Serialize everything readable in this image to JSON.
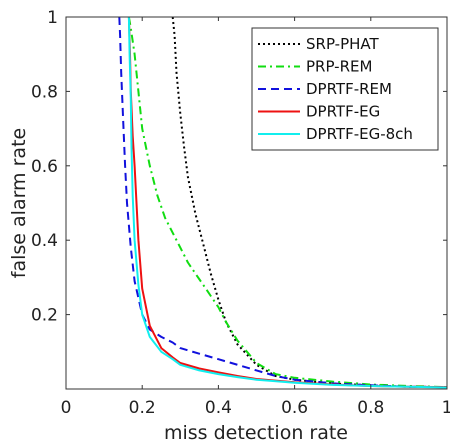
{
  "chart_data": {
    "type": "line",
    "title": "",
    "xlabel": "miss detection rate",
    "ylabel": "false alarm rate",
    "xlim": [
      0,
      1
    ],
    "ylim": [
      0,
      1
    ],
    "xticks": [
      0,
      0.2,
      0.4,
      0.6,
      0.8,
      1
    ],
    "xtick_labels": [
      "0",
      "0.2",
      "0.4",
      "0.6",
      "0.8",
      "1"
    ],
    "yticks": [
      0.2,
      0.4,
      0.6,
      0.8,
      1
    ],
    "ytick_labels": [
      "0.2",
      "0.4",
      "0.6",
      "0.8",
      "1"
    ],
    "grid": false,
    "legend_position": "top-right",
    "series": [
      {
        "name": "SRP-PHAT",
        "color": "#000000",
        "line_style": "dotted",
        "x": [
          0.28,
          0.285,
          0.29,
          0.3,
          0.31,
          0.32,
          0.34,
          0.36,
          0.38,
          0.4,
          0.42,
          0.45,
          0.5,
          0.55,
          0.6,
          0.7,
          0.8,
          0.9,
          1.0
        ],
        "y": [
          1.0,
          0.95,
          0.85,
          0.74,
          0.65,
          0.57,
          0.47,
          0.39,
          0.31,
          0.24,
          0.18,
          0.12,
          0.065,
          0.035,
          0.025,
          0.015,
          0.01,
          0.006,
          0.005
        ]
      },
      {
        "name": "PRP-REM",
        "color": "#11dd11",
        "line_style": "dashdot",
        "x": [
          0.165,
          0.17,
          0.18,
          0.19,
          0.2,
          0.22,
          0.24,
          0.26,
          0.28,
          0.3,
          0.32,
          0.34,
          0.36,
          0.38,
          0.4,
          0.42,
          0.45,
          0.5,
          0.55,
          0.6,
          0.7,
          0.8,
          0.9,
          1.0
        ],
        "y": [
          1.0,
          0.97,
          0.9,
          0.8,
          0.7,
          0.6,
          0.52,
          0.46,
          0.42,
          0.38,
          0.34,
          0.31,
          0.28,
          0.25,
          0.22,
          0.18,
          0.13,
          0.07,
          0.04,
          0.03,
          0.02,
          0.012,
          0.008,
          0.005
        ]
      },
      {
        "name": "DPRTF-REM",
        "color": "#1111dd",
        "line_style": "dashed",
        "x": [
          0.14,
          0.142,
          0.145,
          0.15,
          0.155,
          0.16,
          0.17,
          0.18,
          0.2,
          0.22,
          0.25,
          0.28,
          0.3,
          0.35,
          0.4,
          0.45,
          0.5,
          0.55,
          0.6,
          0.7,
          0.8,
          0.9,
          1.0
        ],
        "y": [
          1.0,
          0.95,
          0.85,
          0.72,
          0.6,
          0.5,
          0.38,
          0.29,
          0.2,
          0.16,
          0.14,
          0.125,
          0.11,
          0.095,
          0.08,
          0.065,
          0.05,
          0.035,
          0.025,
          0.015,
          0.01,
          0.006,
          0.005
        ]
      },
      {
        "name": "DPRTF-EG",
        "color": "#ee1111",
        "line_style": "solid",
        "x": [
          0.165,
          0.168,
          0.17,
          0.175,
          0.18,
          0.185,
          0.19,
          0.2,
          0.22,
          0.25,
          0.28,
          0.3,
          0.35,
          0.4,
          0.45,
          0.5,
          0.6,
          0.7,
          0.8,
          0.9,
          1.0
        ],
        "y": [
          1.0,
          0.9,
          0.8,
          0.68,
          0.6,
          0.5,
          0.4,
          0.27,
          0.17,
          0.11,
          0.085,
          0.07,
          0.055,
          0.045,
          0.035,
          0.027,
          0.018,
          0.012,
          0.008,
          0.006,
          0.005
        ]
      },
      {
        "name": "DPRTF-EG-8ch",
        "color": "#11eeee",
        "line_style": "solid",
        "x": [
          0.165,
          0.167,
          0.17,
          0.172,
          0.175,
          0.18,
          0.19,
          0.2,
          0.22,
          0.25,
          0.28,
          0.3,
          0.35,
          0.4,
          0.45,
          0.5,
          0.6,
          0.7,
          0.8,
          0.9,
          1.0
        ],
        "y": [
          1.0,
          0.9,
          0.78,
          0.65,
          0.52,
          0.4,
          0.28,
          0.2,
          0.14,
          0.1,
          0.08,
          0.065,
          0.05,
          0.04,
          0.032,
          0.025,
          0.017,
          0.011,
          0.008,
          0.006,
          0.004
        ]
      }
    ]
  }
}
